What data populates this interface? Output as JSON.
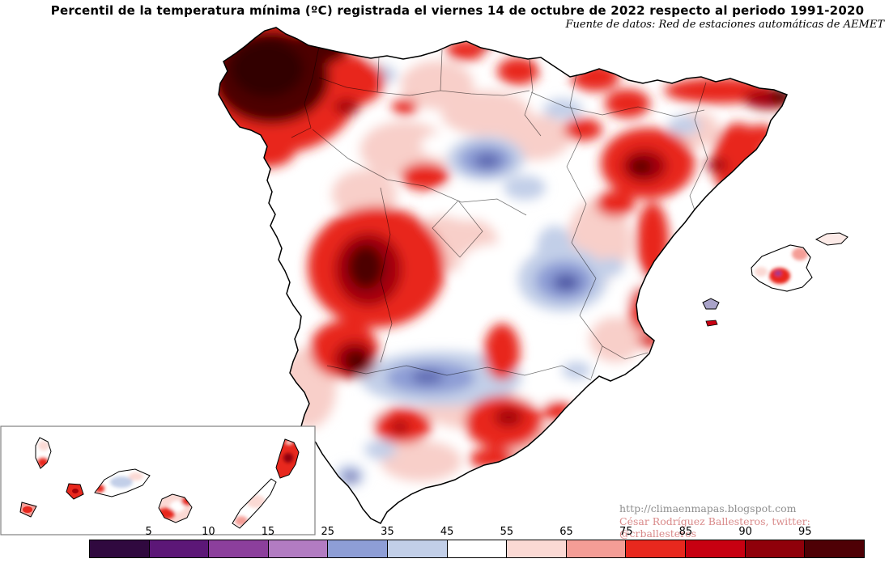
{
  "header": {
    "title": "Percentil de la temperatura mínima (ºC) registrada el viernes 14 de octubre de 2022 respecto al periodo 1991-2020",
    "source": "Fuente de datos: Red de estaciones automáticas de AEMET"
  },
  "attribution": {
    "url": "http://climaenmapas.blogspot.com",
    "author": "César Rodríguez Ballesteros, twitter: @crballesteros"
  },
  "legend": {
    "labels": [
      "5",
      "10",
      "15",
      "25",
      "35",
      "45",
      "55",
      "65",
      "75",
      "85",
      "90",
      "95"
    ],
    "colors": [
      "#30093f",
      "#5c1777",
      "#8c3f9c",
      "#b27cc2",
      "#8e9ed6",
      "#c2cfe8",
      "#ffffff",
      "#fbd9d4",
      "#f49d96",
      "#e8281e",
      "#c70011",
      "#8f000a",
      "#4e0005"
    ]
  }
}
